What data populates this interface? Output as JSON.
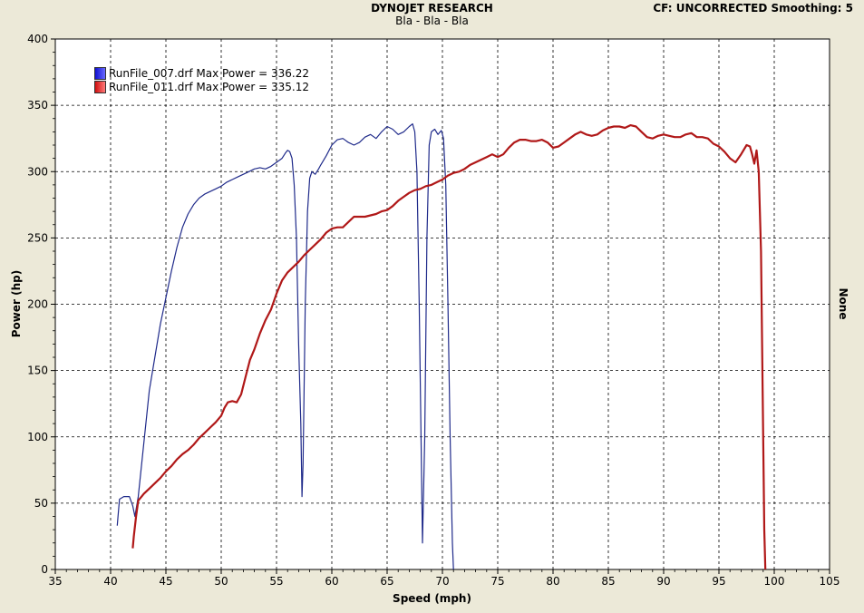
{
  "header": {
    "title": "DYNOJET RESEARCH",
    "subtitle": "Bla - Bla - Bla",
    "right": "CF: UNCORRECTED  Smoothing: 5"
  },
  "colors": {
    "plot_bg": "#ffffff",
    "frame_bg": "#ece9d8",
    "grid": "#000000",
    "series_blue": "#1f2a8a",
    "series_red": "#b01818"
  },
  "chart_data": {
    "type": "line",
    "title": "DYNOJET RESEARCH",
    "subtitle": "Bla - Bla - Bla",
    "xlabel": "Speed (mph)",
    "ylabel": "Power (hp)",
    "y2label": "None",
    "xlim": [
      35,
      105
    ],
    "ylim": [
      0,
      400
    ],
    "xticks": [
      35,
      40,
      45,
      50,
      55,
      60,
      65,
      70,
      75,
      80,
      85,
      90,
      95,
      100,
      105
    ],
    "yticks": [
      0,
      50,
      100,
      150,
      200,
      250,
      300,
      350,
      400
    ],
    "grid": true,
    "legend_position": "top-left",
    "series": [
      {
        "name": "RunFile_007.drf Max Power = 336.22",
        "color": "#1f2a8a",
        "points": [
          [
            40.6,
            33
          ],
          [
            40.8,
            53
          ],
          [
            41.2,
            55
          ],
          [
            41.7,
            55
          ],
          [
            42.0,
            48
          ],
          [
            42.2,
            40
          ],
          [
            42.5,
            55
          ],
          [
            43.0,
            95
          ],
          [
            43.5,
            135
          ],
          [
            44.0,
            160
          ],
          [
            44.5,
            185
          ],
          [
            45.0,
            205
          ],
          [
            45.5,
            225
          ],
          [
            46.0,
            243
          ],
          [
            46.5,
            258
          ],
          [
            47.0,
            268
          ],
          [
            47.5,
            275
          ],
          [
            48.0,
            280
          ],
          [
            48.5,
            283
          ],
          [
            49.0,
            285
          ],
          [
            49.5,
            287
          ],
          [
            50.0,
            289
          ],
          [
            50.5,
            292
          ],
          [
            51.0,
            294
          ],
          [
            51.5,
            296
          ],
          [
            52.0,
            298
          ],
          [
            52.5,
            300
          ],
          [
            53.0,
            302
          ],
          [
            53.5,
            303
          ],
          [
            54.0,
            302
          ],
          [
            54.5,
            304
          ],
          [
            55.0,
            307
          ],
          [
            55.5,
            310
          ],
          [
            55.8,
            314
          ],
          [
            56.0,
            316
          ],
          [
            56.2,
            315
          ],
          [
            56.4,
            310
          ],
          [
            56.6,
            290
          ],
          [
            56.8,
            250
          ],
          [
            57.0,
            170
          ],
          [
            57.2,
            110
          ],
          [
            57.3,
            55
          ],
          [
            57.4,
            80
          ],
          [
            57.6,
            200
          ],
          [
            57.8,
            270
          ],
          [
            58.0,
            295
          ],
          [
            58.2,
            300
          ],
          [
            58.5,
            298
          ],
          [
            58.8,
            302
          ],
          [
            59.0,
            305
          ],
          [
            59.5,
            312
          ],
          [
            60.0,
            320
          ],
          [
            60.5,
            324
          ],
          [
            61.0,
            325
          ],
          [
            61.5,
            322
          ],
          [
            62.0,
            320
          ],
          [
            62.5,
            322
          ],
          [
            63.0,
            326
          ],
          [
            63.5,
            328
          ],
          [
            64.0,
            325
          ],
          [
            64.5,
            330
          ],
          [
            65.0,
            334
          ],
          [
            65.5,
            332
          ],
          [
            66.0,
            328
          ],
          [
            66.5,
            330
          ],
          [
            67.0,
            334
          ],
          [
            67.3,
            336
          ],
          [
            67.5,
            330
          ],
          [
            67.7,
            300
          ],
          [
            67.9,
            200
          ],
          [
            68.1,
            80
          ],
          [
            68.2,
            20
          ],
          [
            68.4,
            100
          ],
          [
            68.6,
            250
          ],
          [
            68.8,
            320
          ],
          [
            69.0,
            330
          ],
          [
            69.3,
            332
          ],
          [
            69.6,
            328
          ],
          [
            69.9,
            331
          ],
          [
            70.1,
            325
          ],
          [
            70.3,
            290
          ],
          [
            70.5,
            200
          ],
          [
            70.7,
            100
          ],
          [
            70.9,
            20
          ],
          [
            71.0,
            0
          ]
        ]
      },
      {
        "name": "RunFile_011.drf Max Power = 335.12",
        "color": "#b01818",
        "points": [
          [
            42.0,
            16
          ],
          [
            42.1,
            25
          ],
          [
            42.3,
            40
          ],
          [
            42.5,
            52
          ],
          [
            42.8,
            55
          ],
          [
            43.0,
            57
          ],
          [
            43.5,
            61
          ],
          [
            44.0,
            65
          ],
          [
            44.5,
            69
          ],
          [
            45.0,
            74
          ],
          [
            45.5,
            78
          ],
          [
            46.0,
            83
          ],
          [
            46.5,
            87
          ],
          [
            47.0,
            90
          ],
          [
            47.5,
            94
          ],
          [
            48.0,
            99
          ],
          [
            48.5,
            103
          ],
          [
            49.0,
            107
          ],
          [
            49.5,
            111
          ],
          [
            50.0,
            116
          ],
          [
            50.3,
            122
          ],
          [
            50.6,
            126
          ],
          [
            51.0,
            127
          ],
          [
            51.4,
            126
          ],
          [
            51.8,
            132
          ],
          [
            52.2,
            145
          ],
          [
            52.6,
            158
          ],
          [
            53.0,
            166
          ],
          [
            53.5,
            178
          ],
          [
            54.0,
            188
          ],
          [
            54.5,
            196
          ],
          [
            55.0,
            208
          ],
          [
            55.5,
            218
          ],
          [
            56.0,
            224
          ],
          [
            56.5,
            228
          ],
          [
            57.0,
            232
          ],
          [
            57.5,
            237
          ],
          [
            58.0,
            241
          ],
          [
            58.5,
            245
          ],
          [
            59.0,
            249
          ],
          [
            59.5,
            254
          ],
          [
            60.0,
            257
          ],
          [
            60.5,
            258
          ],
          [
            61.0,
            258
          ],
          [
            61.5,
            262
          ],
          [
            62.0,
            266
          ],
          [
            62.5,
            266
          ],
          [
            63.0,
            266
          ],
          [
            63.5,
            267
          ],
          [
            64.0,
            268
          ],
          [
            64.5,
            270
          ],
          [
            65.0,
            271
          ],
          [
            65.5,
            274
          ],
          [
            66.0,
            278
          ],
          [
            66.5,
            281
          ],
          [
            67.0,
            284
          ],
          [
            67.5,
            286
          ],
          [
            68.0,
            287
          ],
          [
            68.5,
            289
          ],
          [
            69.0,
            290
          ],
          [
            69.5,
            292
          ],
          [
            70.0,
            294
          ],
          [
            70.5,
            297
          ],
          [
            71.0,
            299
          ],
          [
            71.5,
            300
          ],
          [
            72.0,
            302
          ],
          [
            72.5,
            305
          ],
          [
            73.0,
            307
          ],
          [
            73.5,
            309
          ],
          [
            74.0,
            311
          ],
          [
            74.5,
            313
          ],
          [
            75.0,
            311
          ],
          [
            75.5,
            313
          ],
          [
            76.0,
            318
          ],
          [
            76.5,
            322
          ],
          [
            77.0,
            324
          ],
          [
            77.5,
            324
          ],
          [
            78.0,
            323
          ],
          [
            78.5,
            323
          ],
          [
            79.0,
            324
          ],
          [
            79.5,
            322
          ],
          [
            80.0,
            318
          ],
          [
            80.5,
            319
          ],
          [
            81.0,
            322
          ],
          [
            81.5,
            325
          ],
          [
            82.0,
            328
          ],
          [
            82.5,
            330
          ],
          [
            83.0,
            328
          ],
          [
            83.5,
            327
          ],
          [
            84.0,
            328
          ],
          [
            84.5,
            331
          ],
          [
            85.0,
            333
          ],
          [
            85.5,
            334
          ],
          [
            86.0,
            334
          ],
          [
            86.5,
            333
          ],
          [
            87.0,
            335
          ],
          [
            87.5,
            334
          ],
          [
            88.0,
            330
          ],
          [
            88.5,
            326
          ],
          [
            89.0,
            325
          ],
          [
            89.5,
            327
          ],
          [
            90.0,
            328
          ],
          [
            90.5,
            327
          ],
          [
            91.0,
            326
          ],
          [
            91.5,
            326
          ],
          [
            92.0,
            328
          ],
          [
            92.5,
            329
          ],
          [
            93.0,
            326
          ],
          [
            93.5,
            326
          ],
          [
            94.0,
            325
          ],
          [
            94.5,
            321
          ],
          [
            95.0,
            319
          ],
          [
            95.5,
            315
          ],
          [
            96.0,
            310
          ],
          [
            96.5,
            307
          ],
          [
            97.0,
            313
          ],
          [
            97.5,
            320
          ],
          [
            97.8,
            319
          ],
          [
            98.0,
            313
          ],
          [
            98.2,
            306
          ],
          [
            98.4,
            316
          ],
          [
            98.6,
            300
          ],
          [
            98.8,
            240
          ],
          [
            98.9,
            170
          ],
          [
            99.0,
            100
          ],
          [
            99.1,
            30
          ],
          [
            99.2,
            0
          ]
        ]
      }
    ]
  }
}
